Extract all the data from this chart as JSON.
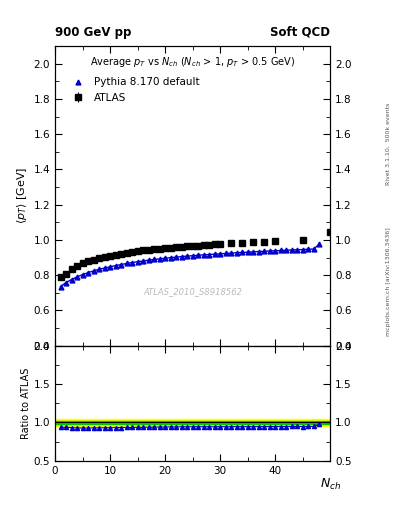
{
  "title_left": "900 GeV pp",
  "title_right": "Soft QCD",
  "plot_title": "Average $p_T$ vs $N_{ch}$ ($N_{ch}$ > 1, $p_T$ > 0.5 GeV)",
  "watermark": "ATLAS_2010_S8918562",
  "right_label_top": "Rivet 3.1.10,  500k events",
  "right_label_bot": "mcplots.cern.ch [arXiv:1306.3436]",
  "xlabel": "$N_{ch}$",
  "ylabel": "$\\langle p_T \\rangle$ [GeV]",
  "ylabel_ratio": "Ratio to ATLAS",
  "ylim_main": [
    0.4,
    2.1
  ],
  "ylim_ratio": [
    0.5,
    2.0
  ],
  "xlim": [
    0,
    50
  ],
  "atlas_nch": [
    1,
    2,
    3,
    4,
    5,
    6,
    7,
    8,
    9,
    10,
    11,
    12,
    13,
    14,
    15,
    16,
    17,
    18,
    19,
    20,
    21,
    22,
    23,
    24,
    25,
    26,
    27,
    28,
    29,
    30,
    32,
    34,
    36,
    38,
    40,
    45,
    50
  ],
  "atlas_pt": [
    0.787,
    0.808,
    0.832,
    0.85,
    0.866,
    0.878,
    0.888,
    0.896,
    0.904,
    0.91,
    0.916,
    0.922,
    0.927,
    0.931,
    0.936,
    0.94,
    0.944,
    0.947,
    0.95,
    0.953,
    0.955,
    0.958,
    0.96,
    0.963,
    0.965,
    0.967,
    0.97,
    0.972,
    0.974,
    0.976,
    0.98,
    0.984,
    0.987,
    0.99,
    0.994,
    1.001,
    1.045
  ],
  "atlas_err": [
    0.012,
    0.01,
    0.008,
    0.007,
    0.007,
    0.006,
    0.006,
    0.006,
    0.006,
    0.006,
    0.006,
    0.006,
    0.006,
    0.006,
    0.006,
    0.006,
    0.006,
    0.006,
    0.006,
    0.006,
    0.006,
    0.006,
    0.006,
    0.006,
    0.006,
    0.006,
    0.006,
    0.006,
    0.006,
    0.006,
    0.006,
    0.006,
    0.006,
    0.006,
    0.006,
    0.007,
    0.008
  ],
  "pythia_nch": [
    1,
    2,
    3,
    4,
    5,
    6,
    7,
    8,
    9,
    10,
    11,
    12,
    13,
    14,
    15,
    16,
    17,
    18,
    19,
    20,
    21,
    22,
    23,
    24,
    25,
    26,
    27,
    28,
    29,
    30,
    31,
    32,
    33,
    34,
    35,
    36,
    37,
    38,
    39,
    40,
    41,
    42,
    43,
    44,
    45,
    46,
    47,
    48
  ],
  "pythia_pt": [
    0.735,
    0.758,
    0.775,
    0.79,
    0.803,
    0.814,
    0.824,
    0.833,
    0.84,
    0.847,
    0.854,
    0.86,
    0.866,
    0.871,
    0.876,
    0.88,
    0.885,
    0.889,
    0.892,
    0.896,
    0.899,
    0.902,
    0.905,
    0.908,
    0.91,
    0.913,
    0.915,
    0.917,
    0.919,
    0.921,
    0.923,
    0.925,
    0.927,
    0.929,
    0.93,
    0.932,
    0.934,
    0.935,
    0.937,
    0.938,
    0.94,
    0.941,
    0.943,
    0.944,
    0.945,
    0.947,
    0.948,
    0.975
  ],
  "ratio_nch": [
    1,
    2,
    3,
    4,
    5,
    6,
    7,
    8,
    9,
    10,
    11,
    12,
    13,
    14,
    15,
    16,
    17,
    18,
    19,
    20,
    21,
    22,
    23,
    24,
    25,
    26,
    27,
    28,
    29,
    30,
    31,
    32,
    33,
    34,
    35,
    36,
    37,
    38,
    39,
    40,
    41,
    42,
    43,
    44,
    45,
    46,
    47,
    48
  ],
  "ratio_vals": [
    0.934,
    0.938,
    0.931,
    0.929,
    0.927,
    0.927,
    0.928,
    0.929,
    0.93,
    0.931,
    0.932,
    0.933,
    0.934,
    0.934,
    0.936,
    0.936,
    0.937,
    0.939,
    0.939,
    0.94,
    0.941,
    0.941,
    0.943,
    0.943,
    0.943,
    0.944,
    0.944,
    0.943,
    0.943,
    0.944,
    0.944,
    0.944,
    0.945,
    0.945,
    0.944,
    0.945,
    0.945,
    0.945,
    0.946,
    0.946,
    0.946,
    0.946,
    0.947,
    0.947,
    0.946,
    0.947,
    0.948,
    0.975
  ],
  "band_yellow_hi": 1.05,
  "band_yellow_lo": 0.95,
  "band_green_hi": 1.02,
  "band_green_lo": 0.98,
  "atlas_color": "#000000",
  "pythia_color": "#0000CC",
  "band_yellow_color": "#FFFF00",
  "band_green_color": "#00CC00",
  "background_color": "#ffffff"
}
